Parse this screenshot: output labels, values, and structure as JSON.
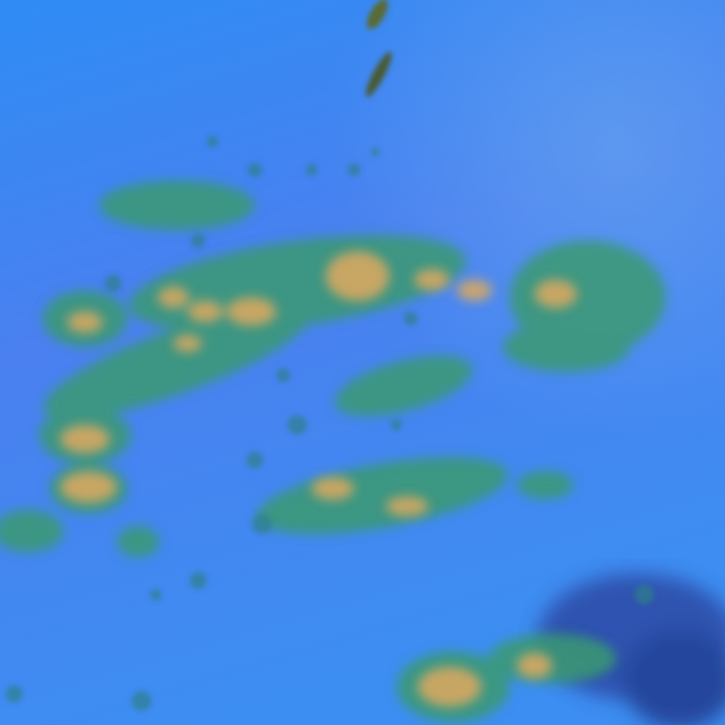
{
  "image": {
    "kind": "false-color satellite imagery",
    "colors": {
      "background_top": "#2f8cf4",
      "background_mid": "#4a7ff0",
      "background_bottom": "#3f8ef2",
      "cloud_edge": "#2f9a7a",
      "cloud_green": "#5aa84a",
      "cloud_core": "#d8a860",
      "dark_cloud": "#1a2a6a"
    }
  }
}
